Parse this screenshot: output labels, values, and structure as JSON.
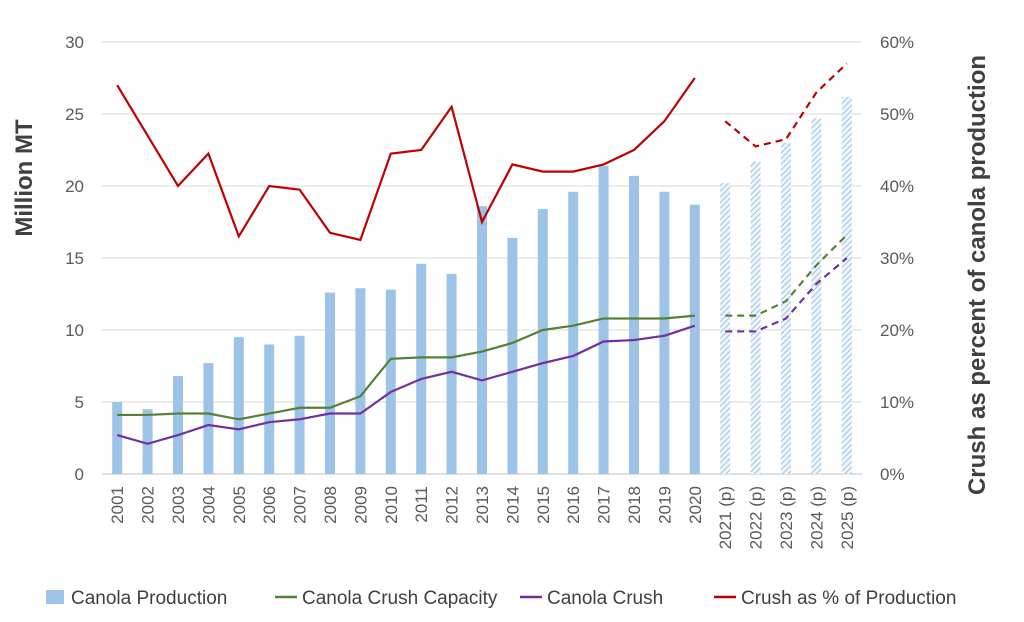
{
  "chart_data": {
    "type": "bar",
    "categories": [
      "2001",
      "2002",
      "2003",
      "2004",
      "2005",
      "2006",
      "2007",
      "2008",
      "2009",
      "2010",
      "2011",
      "2012",
      "2013",
      "2014",
      "2015",
      "2016",
      "2017",
      "2018",
      "2019",
      "2020",
      "2021 (p)",
      "2022 (p)",
      "2023 (p)",
      "2024 (p)",
      "2025 (p)"
    ],
    "projected_categories": [
      "2021 (p)",
      "2022 (p)",
      "2023 (p)",
      "2024 (p)",
      "2025 (p)"
    ],
    "series": [
      {
        "name": "Canola Production",
        "type": "bar",
        "axis": "left",
        "color": "#9DC3E6",
        "values": [
          5.0,
          4.5,
          6.8,
          7.7,
          9.5,
          9.0,
          9.6,
          12.6,
          12.9,
          12.8,
          14.6,
          13.9,
          18.6,
          16.4,
          18.4,
          19.6,
          21.4,
          20.7,
          19.6,
          18.7,
          20.2,
          21.7,
          23.0,
          24.7,
          26.2
        ]
      },
      {
        "name": "Canola Crush Capacity",
        "type": "line",
        "axis": "left",
        "color": "#548235",
        "values": [
          4.1,
          4.1,
          4.2,
          4.2,
          3.8,
          4.2,
          4.6,
          4.6,
          5.4,
          8.0,
          8.1,
          8.1,
          8.5,
          9.1,
          10.0,
          10.3,
          10.8,
          10.8,
          10.8,
          11.0,
          11.0,
          11.0,
          12.0,
          14.5,
          16.6
        ]
      },
      {
        "name": "Canola Crush",
        "type": "line",
        "axis": "left",
        "color": "#7030A0",
        "values": [
          2.7,
          2.1,
          2.7,
          3.4,
          3.1,
          3.6,
          3.8,
          4.2,
          4.2,
          5.7,
          6.6,
          7.1,
          6.5,
          7.1,
          7.7,
          8.2,
          9.2,
          9.3,
          9.6,
          10.3,
          9.9,
          9.9,
          10.8,
          13.2,
          15.0
        ]
      },
      {
        "name": "Crush as % of Production",
        "type": "line",
        "axis": "right",
        "color": "#C00000",
        "values": [
          54,
          47,
          40,
          44.5,
          33,
          40,
          39.5,
          33.5,
          32.5,
          44.5,
          45,
          51,
          35,
          43,
          42,
          42,
          43,
          45,
          49,
          55,
          49,
          45.5,
          46.5,
          53,
          57
        ]
      }
    ],
    "y_left": {
      "label": "Million MT",
      "min": 0,
      "max": 30,
      "ticks": [
        "0",
        "5",
        "10",
        "15",
        "20",
        "25",
        "30"
      ]
    },
    "y_right": {
      "label": "Crush as percent of canola production",
      "min": 0,
      "max": 60,
      "ticks": [
        "0%",
        "10%",
        "20%",
        "30%",
        "40%",
        "50%",
        "60%"
      ]
    },
    "grid": true,
    "legend_position": "bottom"
  }
}
